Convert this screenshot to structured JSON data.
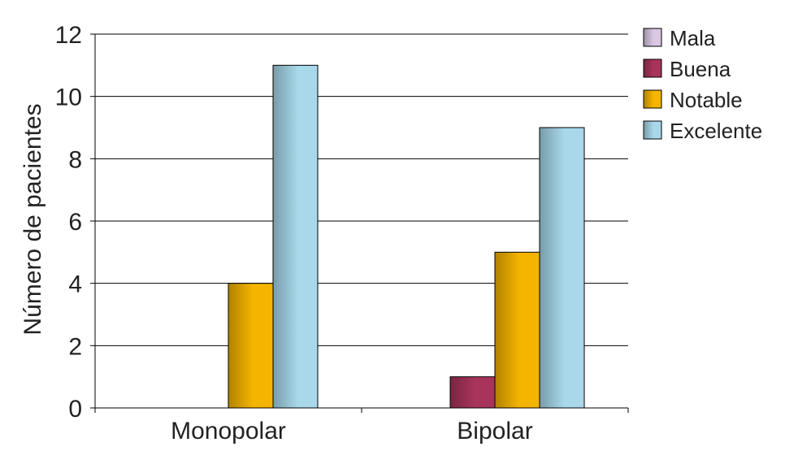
{
  "chart_data": {
    "type": "bar",
    "title": "",
    "xlabel": "",
    "ylabel": "Número de pacientes",
    "ylim": [
      0,
      12
    ],
    "yticks": [
      0,
      2,
      4,
      6,
      8,
      10,
      12
    ],
    "grid": true,
    "legend_position": "right",
    "categories": [
      "Monopolar",
      "Bipolar"
    ],
    "series": [
      {
        "name": "Mala",
        "values": [
          0,
          0
        ],
        "color": "#d9c8e3"
      },
      {
        "name": "Buena",
        "values": [
          0,
          1
        ],
        "color": "#a8345c"
      },
      {
        "name": "Notable",
        "values": [
          4,
          5
        ],
        "color": "#f5b400"
      },
      {
        "name": "Excelente",
        "values": [
          11,
          9
        ],
        "color": "#a8d8ea"
      }
    ]
  }
}
